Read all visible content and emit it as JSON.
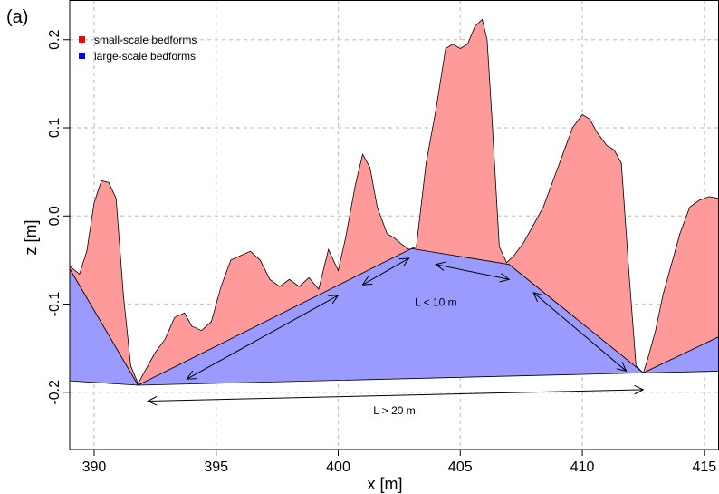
{
  "chart_data": {
    "type": "area",
    "panel_label": "(a)",
    "xlabel": "x [m]",
    "ylabel": "z [m]",
    "xlim": [
      389,
      415.6
    ],
    "ylim": [
      -0.265,
      0.245
    ],
    "x_ticks": [
      390,
      395,
      400,
      405,
      410,
      415
    ],
    "y_ticks": [
      -0.2,
      -0.1,
      0.0,
      0.1,
      0.2
    ],
    "y_tick_labels": [
      "-0.2",
      "-0.1",
      "0.0",
      "0.1",
      "0.2"
    ],
    "grid": true,
    "legend_position": "top-left",
    "legend": [
      {
        "label": "small-scale bedforms",
        "color": "#ff0000"
      },
      {
        "label": "large-scale bedforms",
        "color": "#0000ff"
      }
    ],
    "series": [
      {
        "name": "small-scale bedforms",
        "color": "#ff9a9a",
        "x": [
          389,
          389.4,
          389.7,
          390.0,
          390.3,
          390.6,
          390.9,
          391.2,
          391.5,
          391.8,
          392.1,
          392.5,
          392.9,
          393.3,
          393.7,
          394.0,
          394.4,
          394.8,
          395.2,
          395.6,
          396.0,
          396.4,
          396.8,
          397.2,
          397.6,
          398.0,
          398.4,
          398.8,
          399.2,
          399.6,
          400.0,
          400.3,
          400.7,
          401.0,
          401.3,
          401.6,
          402.0,
          402.3,
          402.6,
          402.9,
          403.2,
          403.6,
          404.0,
          404.4,
          404.7,
          405.0,
          405.3,
          405.6,
          405.9,
          406.1,
          406.3,
          406.6,
          406.9,
          407.2,
          407.6,
          408.0,
          408.4,
          408.8,
          409.2,
          409.6,
          410.0,
          410.3,
          410.6,
          411.0,
          411.3,
          411.6,
          411.9,
          412.2,
          412.5,
          412.7,
          413.0,
          413.3,
          413.6,
          414.0,
          414.4,
          414.8,
          415.2,
          415.6
        ],
        "top": [
          -0.057,
          -0.066,
          -0.04,
          0.015,
          0.04,
          0.038,
          0.02,
          -0.09,
          -0.17,
          -0.19,
          -0.175,
          -0.155,
          -0.14,
          -0.115,
          -0.11,
          -0.125,
          -0.13,
          -0.12,
          -0.08,
          -0.05,
          -0.045,
          -0.04,
          -0.05,
          -0.072,
          -0.08,
          -0.072,
          -0.08,
          -0.07,
          -0.083,
          -0.038,
          -0.062,
          -0.025,
          0.035,
          0.07,
          0.055,
          0.01,
          -0.02,
          -0.025,
          -0.032,
          -0.038,
          -0.035,
          0.06,
          0.12,
          0.19,
          0.195,
          0.19,
          0.195,
          0.215,
          0.223,
          0.2,
          0.11,
          -0.035,
          -0.053,
          -0.045,
          -0.03,
          -0.01,
          0.01,
          0.04,
          0.07,
          0.1,
          0.115,
          0.11,
          0.095,
          0.08,
          0.075,
          0.06,
          -0.06,
          -0.17,
          -0.178,
          -0.16,
          -0.13,
          -0.09,
          -0.06,
          -0.02,
          0.01,
          0.018,
          0.022,
          0.02
        ]
      },
      {
        "name": "large-scale bedforms",
        "color": "#9a9aff",
        "x": [
          389,
          391.8,
          403.0,
          407.0,
          412.5,
          415.6
        ],
        "top": [
          -0.06,
          -0.192,
          -0.037,
          -0.055,
          -0.178,
          -0.137
        ],
        "bottom_x": [
          389,
          391.8,
          412.5,
          415.6
        ],
        "bottom": [
          -0.187,
          -0.192,
          -0.178,
          -0.176
        ]
      }
    ],
    "annotations": [
      {
        "text": "L < 10 m",
        "x": 404.0,
        "y": -0.098
      },
      {
        "text": "L > 20 m",
        "x": 402.3,
        "y": -0.221
      }
    ]
  }
}
